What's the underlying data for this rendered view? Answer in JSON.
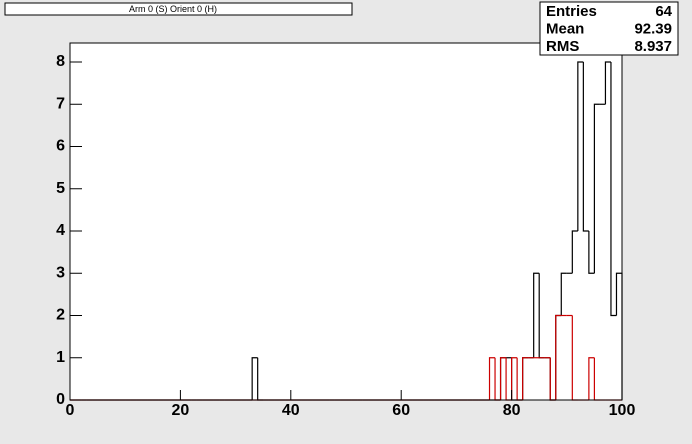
{
  "chart_data": {
    "type": "histogram",
    "title": "Arm 0 (S) Orient 0 (H)",
    "bins": [
      0,
      1,
      2,
      3,
      4,
      5,
      6,
      7,
      8,
      9,
      10,
      11,
      12,
      13,
      14,
      15,
      16,
      17,
      18,
      19,
      20,
      21,
      22,
      23,
      24,
      25,
      26,
      27,
      28,
      29,
      30,
      31,
      32,
      33,
      34,
      35,
      36,
      37,
      38,
      39,
      40,
      41,
      42,
      43,
      44,
      45,
      46,
      47,
      48,
      49,
      50,
      51,
      52,
      53,
      54,
      55,
      56,
      57,
      58,
      59,
      60,
      61,
      62,
      63,
      64,
      65,
      66,
      67,
      68,
      69,
      70,
      71,
      72,
      73,
      74,
      75,
      76,
      77,
      78,
      79,
      80,
      81,
      82,
      83,
      84,
      85,
      86,
      87,
      88,
      89,
      90,
      91,
      92,
      93,
      94,
      95,
      96,
      97,
      98,
      99,
      100
    ],
    "series": [
      {
        "color": "#000000",
        "values": [
          0,
          0,
          0,
          0,
          0,
          0,
          0,
          0,
          0,
          0,
          0,
          0,
          0,
          0,
          0,
          0,
          0,
          0,
          0,
          0,
          0,
          0,
          0,
          0,
          0,
          0,
          0,
          0,
          0,
          0,
          0,
          0,
          0,
          1,
          0,
          0,
          0,
          0,
          0,
          0,
          0,
          0,
          0,
          0,
          0,
          0,
          0,
          0,
          0,
          0,
          0,
          0,
          0,
          0,
          0,
          0,
          0,
          0,
          0,
          0,
          0,
          0,
          0,
          0,
          0,
          0,
          0,
          0,
          0,
          0,
          0,
          0,
          0,
          0,
          0,
          0,
          0,
          0,
          1,
          1,
          0,
          0,
          1,
          1,
          3,
          1,
          1,
          0,
          2,
          3,
          3,
          4,
          8,
          4,
          3,
          7,
          7,
          8,
          2,
          3
        ]
      },
      {
        "color": "#cc0000",
        "values": [
          0,
          0,
          0,
          0,
          0,
          0,
          0,
          0,
          0,
          0,
          0,
          0,
          0,
          0,
          0,
          0,
          0,
          0,
          0,
          0,
          0,
          0,
          0,
          0,
          0,
          0,
          0,
          0,
          0,
          0,
          0,
          0,
          0,
          0,
          0,
          0,
          0,
          0,
          0,
          0,
          0,
          0,
          0,
          0,
          0,
          0,
          0,
          0,
          0,
          0,
          0,
          0,
          0,
          0,
          0,
          0,
          0,
          0,
          0,
          0,
          0,
          0,
          0,
          0,
          0,
          0,
          0,
          0,
          0,
          0,
          0,
          0,
          0,
          0,
          0,
          0,
          1,
          0,
          1,
          0,
          1,
          0,
          1,
          1,
          1,
          1,
          1,
          0,
          2,
          2,
          2,
          0,
          0,
          0,
          1,
          0,
          0,
          0,
          0,
          0
        ]
      }
    ],
    "xlim": [
      0,
      100
    ],
    "xticks": [
      0,
      20,
      40,
      60,
      80,
      100
    ],
    "ylim": [
      0,
      8.45
    ],
    "yticks": [
      0,
      1,
      2,
      3,
      4,
      5,
      6,
      7,
      8
    ],
    "stats": [
      {
        "label": "Entries",
        "value": 64
      },
      {
        "label": "Mean",
        "value": 92.39
      },
      {
        "label": "RMS",
        "value": 8.937
      }
    ]
  }
}
